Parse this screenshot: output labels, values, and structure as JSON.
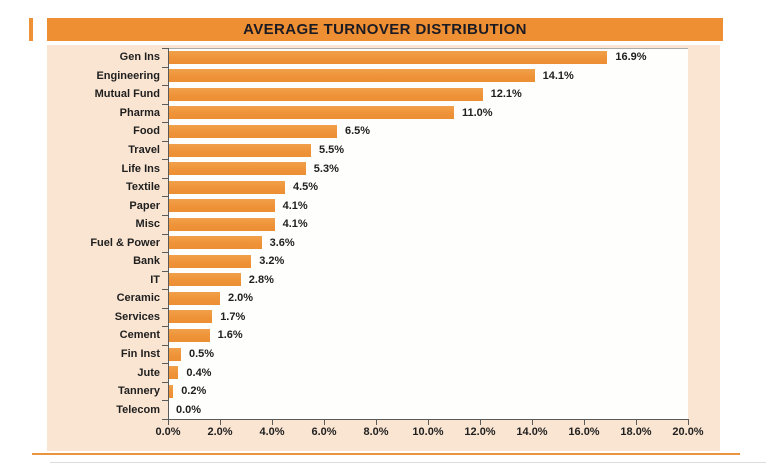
{
  "chart_data": {
    "type": "bar",
    "orientation": "horizontal",
    "title": "AVERAGE TURNOVER DISTRIBUTION",
    "categories": [
      "Gen Ins",
      "Engineering",
      "Mutual Fund",
      "Pharma",
      "Food",
      "Travel",
      "Life Ins",
      "Textile",
      "Paper",
      "Misc",
      "Fuel & Power",
      "Bank",
      "IT",
      "Ceramic",
      "Services",
      "Cement",
      "Fin Inst",
      "Jute",
      "Tannery",
      "Telecom"
    ],
    "values": [
      16.9,
      14.1,
      12.1,
      11.0,
      6.5,
      5.5,
      5.3,
      4.5,
      4.1,
      4.1,
      3.6,
      3.2,
      2.8,
      2.0,
      1.7,
      1.6,
      0.5,
      0.4,
      0.2,
      0.0
    ],
    "value_labels": [
      "16.9%",
      "14.1%",
      "12.1%",
      "11.0%",
      "6.5%",
      "5.5%",
      "5.3%",
      "4.5%",
      "4.1%",
      "4.1%",
      "3.6%",
      "3.2%",
      "2.8%",
      "2.0%",
      "1.7%",
      "1.6%",
      "0.5%",
      "0.4%",
      "0.2%",
      "0.0%"
    ],
    "x_tick_labels": [
      "0.0%",
      "2.0%",
      "4.0%",
      "6.0%",
      "8.0%",
      "10.0%",
      "12.0%",
      "14.0%",
      "16.0%",
      "18.0%",
      "20.0%"
    ],
    "xlim": [
      0,
      20
    ],
    "xlabel": "",
    "ylabel": "",
    "grid": false,
    "legend": false
  },
  "colors": {
    "banner_orange": "#EF8F33",
    "bar_orange": "#EF9338",
    "panel_peach": "#FAE5D2",
    "plot_background": "#FEFEFC",
    "axis": "#5A5A5A",
    "text": "#1F1F1F",
    "title_text": "#1B1B24",
    "bottom_rule_orange": "#E9953F",
    "bottom_rule_gray": "#DCDCDC"
  }
}
